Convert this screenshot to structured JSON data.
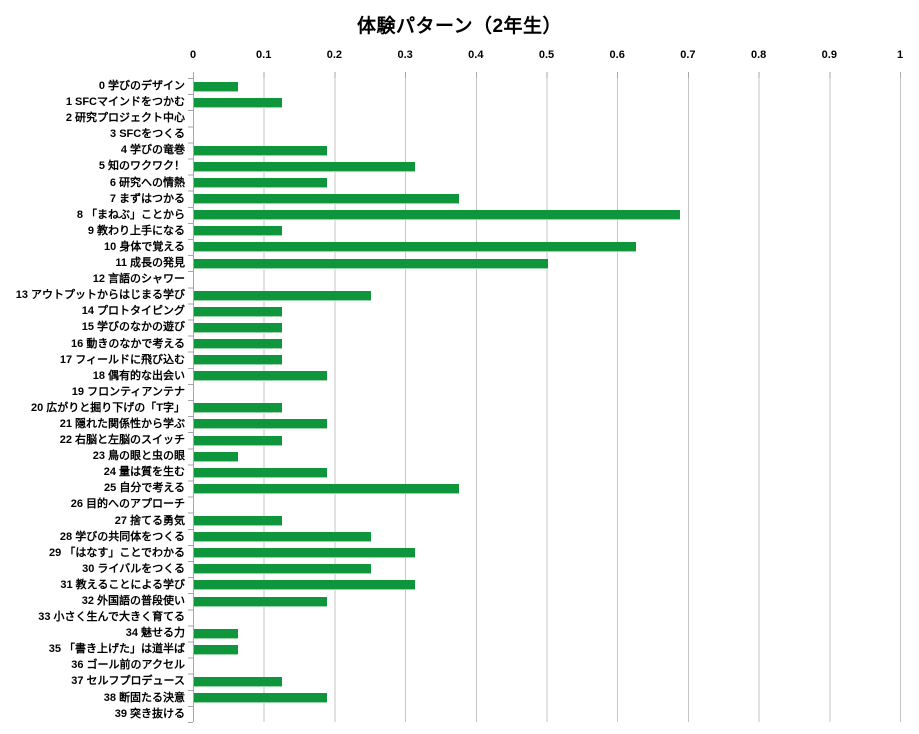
{
  "colors": {
    "bar": "#0F963C",
    "bar_edge": "#9BD2A8",
    "grid": "#C6C6C6",
    "axis": "#A6A6A6",
    "text": "#000000",
    "background": "#FFFFFF"
  },
  "chart_data": {
    "type": "bar",
    "orientation": "horizontal",
    "title": "体験パターン（2年生）",
    "xlabel": "",
    "ylabel": "",
    "xlim": [
      0,
      1
    ],
    "grid": "vertical-gridlines-on",
    "legend": "none",
    "x_ticks": [
      "0",
      "0.1",
      "0.2",
      "0.3",
      "0.4",
      "0.5",
      "0.6",
      "0.7",
      "0.8",
      "0.9",
      "1"
    ],
    "categories": [
      "0 学びのデザイン",
      "1 SFCマインドをつかむ",
      "2 研究プロジェクト中心",
      "3 SFCをつくる",
      "4 学びの竜巻",
      "5 知のワクワク！",
      "6 研究への情熱",
      "7 まずはつかる",
      "8 「まねぶ」ことから",
      "9 教わり上手になる",
      "10 身体で覚える",
      "11 成長の発見",
      "12 言語のシャワー",
      "13 アウトプットからはじまる学び",
      "14 プロトタイピング",
      "15 学びのなかの遊び",
      "16 動きのなかで考える",
      "17 フィールドに飛び込む",
      "18 偶有的な出会い",
      "19 フロンティアンテナ",
      "20 広がりと掘り下げの「T字」",
      "21 隠れた関係性から学ぶ",
      "22 右脳と左脳のスイッチ",
      "23 鳥の眼と虫の眼",
      "24 量は質を生む",
      "25 自分で考える",
      "26 目的へのアプローチ",
      "27 捨てる勇気",
      "28 学びの共同体をつくる",
      "29 「はなす」ことでわかる",
      "30 ライバルをつくる",
      "31 教えることによる学び",
      "32 外国語の普段使い",
      "33 小さく生んで大きく育てる",
      "34 魅せる力",
      "35 「書き上げた」は道半ば",
      "36 ゴール前のアクセル",
      "37 セルフプロデュース",
      "38 断固たる決意",
      "39 突き抜ける"
    ],
    "values": [
      0.0625,
      0.125,
      0,
      0,
      0.1875,
      0.3125,
      0.1875,
      0.375,
      0.6875,
      0.125,
      0.625,
      0.5,
      0,
      0.25,
      0.125,
      0.125,
      0.125,
      0.125,
      0.1875,
      0,
      0.125,
      0.1875,
      0.125,
      0.0625,
      0.1875,
      0.375,
      0,
      0.125,
      0.25,
      0.3125,
      0.25,
      0.3125,
      0.1875,
      0,
      0.0625,
      0.0625,
      0,
      0.125,
      0.1875,
      0
    ]
  }
}
